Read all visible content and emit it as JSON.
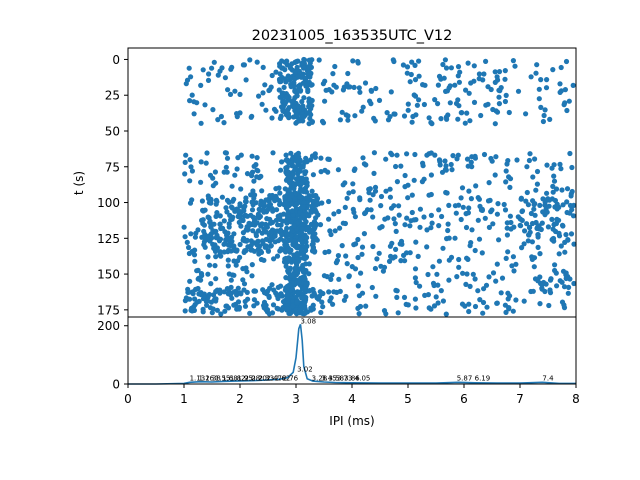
{
  "chart_data": [
    {
      "type": "scatter",
      "title": "20231005_163535UTC_V12",
      "ylabel": "t (s)",
      "xlim": [
        0,
        8
      ],
      "ylim": [
        180,
        -8
      ],
      "y_inverted": true,
      "yticks": [
        0,
        25,
        50,
        75,
        100,
        125,
        150,
        175
      ],
      "color": "#1f77b4",
      "point_clusters": [
        {
          "x_range": [
            1.0,
            8.0
          ],
          "t_range": [
            0,
            45
          ],
          "count": 260
        },
        {
          "x_range": [
            2.7,
            3.3
          ],
          "t_range": [
            0,
            45
          ],
          "count": 160
        },
        {
          "x_range": [
            1.0,
            8.0
          ],
          "t_range": [
            65,
            178
          ],
          "count": 700
        },
        {
          "x_range": [
            1.3,
            3.4
          ],
          "t_range": [
            95,
            135
          ],
          "count": 320
        },
        {
          "x_range": [
            2.8,
            3.2
          ],
          "t_range": [
            65,
            178
          ],
          "count": 420
        },
        {
          "x_range": [
            1.0,
            3.5
          ],
          "t_range": [
            160,
            178
          ],
          "count": 120
        },
        {
          "x_range": [
            7.0,
            8.0
          ],
          "t_range": [
            90,
            130
          ],
          "count": 60
        }
      ]
    },
    {
      "type": "line",
      "xlabel": "IPI (ms)",
      "xlim": [
        0,
        8
      ],
      "ylim": [
        0,
        230
      ],
      "xticks": [
        0,
        1,
        2,
        3,
        4,
        5,
        6,
        7,
        8
      ],
      "yticks": [
        0,
        200
      ],
      "color": "#1f77b4",
      "x": [
        0,
        0.5,
        1.0,
        1.1,
        1.3,
        1.5,
        1.7,
        1.9,
        2.1,
        2.3,
        2.5,
        2.7,
        2.85,
        2.95,
        3.0,
        3.03,
        3.05,
        3.08,
        3.11,
        3.14,
        3.2,
        3.3,
        3.5,
        3.7,
        4.0,
        4.5,
        5.0,
        5.5,
        5.9,
        6.2,
        6.6,
        7.0,
        7.4,
        7.7,
        8.0
      ],
      "values": [
        0,
        0,
        2,
        6,
        8,
        7,
        9,
        10,
        11,
        12,
        14,
        16,
        22,
        40,
        90,
        150,
        190,
        205,
        150,
        60,
        18,
        10,
        7,
        5,
        4,
        3,
        3,
        3,
        6,
        4,
        3,
        3,
        6,
        2,
        2
      ],
      "peak_labels": [
        {
          "x": 3.08,
          "y": 205,
          "text": "3.08"
        },
        {
          "x": 3.02,
          "y": 40,
          "text": "3.02"
        },
        {
          "x": 1.1,
          "y": 8,
          "text": "1.13"
        },
        {
          "x": 1.26,
          "y": 8,
          "text": "1.26"
        },
        {
          "x": 1.38,
          "y": 8,
          "text": "1.38"
        },
        {
          "x": 1.55,
          "y": 8,
          "text": "1.55"
        },
        {
          "x": 1.68,
          "y": 8,
          "text": "1.68"
        },
        {
          "x": 1.82,
          "y": 8,
          "text": "1.82"
        },
        {
          "x": 1.95,
          "y": 8,
          "text": "1.95"
        },
        {
          "x": 2.08,
          "y": 8,
          "text": "2.08"
        },
        {
          "x": 2.2,
          "y": 8,
          "text": "2.20"
        },
        {
          "x": 2.33,
          "y": 8,
          "text": "2.33"
        },
        {
          "x": 2.47,
          "y": 8,
          "text": "2.47"
        },
        {
          "x": 2.62,
          "y": 8,
          "text": "2.62"
        },
        {
          "x": 2.76,
          "y": 8,
          "text": "2.76"
        },
        {
          "x": 3.28,
          "y": 8,
          "text": "3.28"
        },
        {
          "x": 3.45,
          "y": 8,
          "text": "3.45"
        },
        {
          "x": 3.58,
          "y": 8,
          "text": "3.58"
        },
        {
          "x": 3.73,
          "y": 8,
          "text": "3.73"
        },
        {
          "x": 3.86,
          "y": 8,
          "text": "3.86"
        },
        {
          "x": 4.05,
          "y": 8,
          "text": "4.05"
        },
        {
          "x": 5.87,
          "y": 8,
          "text": "5.87"
        },
        {
          "x": 6.19,
          "y": 8,
          "text": "6.19"
        },
        {
          "x": 7.4,
          "y": 8,
          "text": "7.4"
        }
      ]
    }
  ]
}
